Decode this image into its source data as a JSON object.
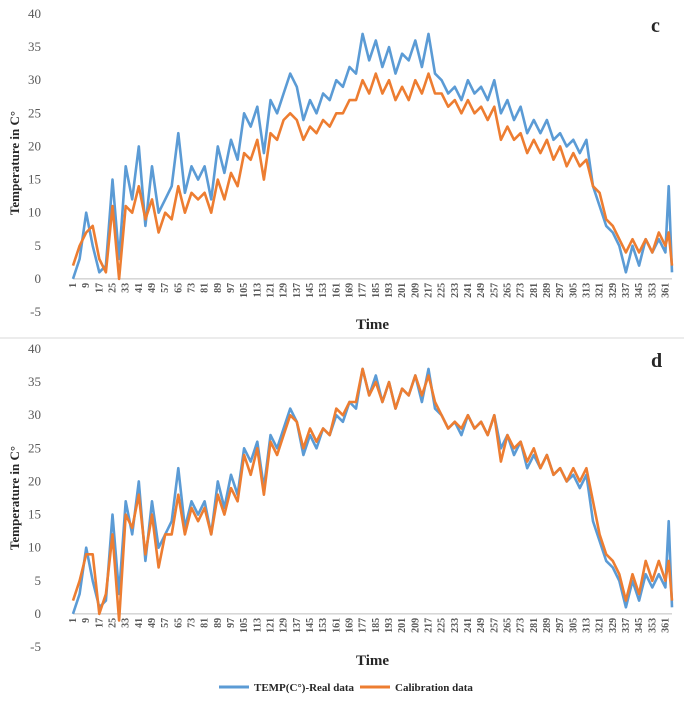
{
  "chart_data": [
    {
      "type": "line",
      "panel_label": "c",
      "xlabel": "Time",
      "ylabel": "Temperature in C°",
      "ylim": [
        -5,
        40
      ],
      "yticks": [
        -5,
        0,
        5,
        10,
        15,
        20,
        25,
        30,
        35,
        40
      ],
      "xlim": [
        1,
        365
      ],
      "xticks": [
        1,
        9,
        17,
        25,
        33,
        41,
        49,
        57,
        65,
        73,
        81,
        89,
        97,
        105,
        113,
        121,
        129,
        137,
        145,
        153,
        161,
        169,
        177,
        185,
        193,
        201,
        209,
        217,
        225,
        233,
        241,
        249,
        257,
        265,
        273,
        281,
        289,
        297,
        305,
        313,
        321,
        329,
        337,
        345,
        353,
        361
      ],
      "series": [
        {
          "name": "TEMP(C°)-Real data",
          "color": "#5b9bd5",
          "x": [
            1,
            5,
            9,
            13,
            17,
            21,
            25,
            29,
            33,
            37,
            41,
            45,
            49,
            53,
            57,
            61,
            65,
            69,
            73,
            77,
            81,
            85,
            89,
            93,
            97,
            101,
            105,
            109,
            113,
            117,
            121,
            125,
            129,
            133,
            137,
            141,
            145,
            149,
            153,
            157,
            161,
            165,
            169,
            173,
            177,
            181,
            185,
            189,
            193,
            197,
            201,
            205,
            209,
            213,
            217,
            221,
            225,
            229,
            233,
            237,
            241,
            245,
            249,
            253,
            257,
            261,
            265,
            269,
            273,
            277,
            281,
            285,
            289,
            293,
            297,
            301,
            305,
            309,
            313,
            317,
            321,
            325,
            329,
            333,
            337,
            341,
            345,
            349,
            353,
            357,
            361,
            363,
            365
          ],
          "values": [
            0,
            3,
            10,
            5,
            1,
            2,
            15,
            3,
            17,
            12,
            20,
            8,
            17,
            10,
            12,
            14,
            22,
            13,
            17,
            15,
            17,
            12,
            20,
            16,
            21,
            18,
            25,
            23,
            26,
            19,
            27,
            25,
            28,
            31,
            29,
            24,
            27,
            25,
            28,
            27,
            30,
            29,
            32,
            31,
            37,
            33,
            36,
            32,
            35,
            31,
            34,
            33,
            36,
            32,
            37,
            31,
            30,
            28,
            29,
            27,
            30,
            28,
            29,
            27,
            30,
            25,
            27,
            24,
            26,
            22,
            24,
            22,
            24,
            21,
            22,
            20,
            21,
            19,
            21,
            14,
            11,
            8,
            7,
            5,
            1,
            5,
            2,
            6,
            4,
            6,
            4,
            14,
            1
          ]
        },
        {
          "name": "Calibration data",
          "color": "#ed7d31",
          "x": [
            1,
            5,
            9,
            13,
            17,
            21,
            25,
            29,
            33,
            37,
            41,
            45,
            49,
            53,
            57,
            61,
            65,
            69,
            73,
            77,
            81,
            85,
            89,
            93,
            97,
            101,
            105,
            109,
            113,
            117,
            121,
            125,
            129,
            133,
            137,
            141,
            145,
            149,
            153,
            157,
            161,
            165,
            169,
            173,
            177,
            181,
            185,
            189,
            193,
            197,
            201,
            205,
            209,
            213,
            217,
            221,
            225,
            229,
            233,
            237,
            241,
            245,
            249,
            253,
            257,
            261,
            265,
            269,
            273,
            277,
            281,
            285,
            289,
            293,
            297,
            301,
            305,
            309,
            313,
            317,
            321,
            325,
            329,
            333,
            337,
            341,
            345,
            349,
            353,
            357,
            361,
            363,
            365
          ],
          "values": [
            2,
            5,
            7,
            8,
            3,
            1,
            11,
            0,
            11,
            10,
            14,
            9,
            12,
            7,
            10,
            9,
            14,
            10,
            13,
            12,
            13,
            10,
            15,
            12,
            16,
            14,
            19,
            18,
            21,
            15,
            22,
            21,
            24,
            25,
            24,
            21,
            23,
            22,
            24,
            23,
            25,
            25,
            27,
            27,
            30,
            28,
            31,
            28,
            30,
            27,
            29,
            27,
            30,
            28,
            31,
            28,
            28,
            26,
            27,
            25,
            27,
            25,
            26,
            24,
            26,
            21,
            23,
            21,
            22,
            19,
            21,
            19,
            21,
            18,
            20,
            17,
            19,
            17,
            18,
            14,
            13,
            9,
            8,
            6,
            4,
            6,
            4,
            6,
            4,
            7,
            5,
            7,
            2
          ]
        }
      ]
    },
    {
      "type": "line",
      "panel_label": "d",
      "xlabel": "Time",
      "ylabel": "Temperature in C°",
      "ylim": [
        -5,
        40
      ],
      "yticks": [
        -5,
        0,
        5,
        10,
        15,
        20,
        25,
        30,
        35,
        40
      ],
      "xlim": [
        1,
        365
      ],
      "xticks": [
        1,
        9,
        17,
        25,
        33,
        41,
        49,
        57,
        65,
        73,
        81,
        89,
        97,
        105,
        113,
        121,
        129,
        137,
        145,
        153,
        161,
        169,
        177,
        185,
        193,
        201,
        209,
        217,
        225,
        233,
        241,
        249,
        257,
        265,
        273,
        281,
        289,
        297,
        305,
        313,
        321,
        329,
        337,
        345,
        353,
        361
      ],
      "series": [
        {
          "name": "TEMP(C°)-Real data",
          "color": "#5b9bd5",
          "x": [
            1,
            5,
            9,
            13,
            17,
            21,
            25,
            29,
            33,
            37,
            41,
            45,
            49,
            53,
            57,
            61,
            65,
            69,
            73,
            77,
            81,
            85,
            89,
            93,
            97,
            101,
            105,
            109,
            113,
            117,
            121,
            125,
            129,
            133,
            137,
            141,
            145,
            149,
            153,
            157,
            161,
            165,
            169,
            173,
            177,
            181,
            185,
            189,
            193,
            197,
            201,
            205,
            209,
            213,
            217,
            221,
            225,
            229,
            233,
            237,
            241,
            245,
            249,
            253,
            257,
            261,
            265,
            269,
            273,
            277,
            281,
            285,
            289,
            293,
            297,
            301,
            305,
            309,
            313,
            317,
            321,
            325,
            329,
            333,
            337,
            341,
            345,
            349,
            353,
            357,
            361,
            363,
            365
          ],
          "values": [
            0,
            3,
            10,
            5,
            1,
            2,
            15,
            3,
            17,
            12,
            20,
            8,
            17,
            10,
            12,
            14,
            22,
            13,
            17,
            15,
            17,
            12,
            20,
            16,
            21,
            18,
            25,
            23,
            26,
            19,
            27,
            25,
            28,
            31,
            29,
            24,
            27,
            25,
            28,
            27,
            30,
            29,
            32,
            31,
            37,
            33,
            36,
            32,
            35,
            31,
            34,
            33,
            36,
            32,
            37,
            31,
            30,
            28,
            29,
            27,
            30,
            28,
            29,
            27,
            30,
            25,
            27,
            24,
            26,
            22,
            24,
            22,
            24,
            21,
            22,
            20,
            21,
            19,
            21,
            14,
            11,
            8,
            7,
            5,
            1,
            5,
            2,
            6,
            4,
            6,
            4,
            14,
            1
          ]
        },
        {
          "name": "Calibration data",
          "color": "#ed7d31",
          "x": [
            1,
            5,
            9,
            13,
            17,
            21,
            25,
            29,
            33,
            37,
            41,
            45,
            49,
            53,
            57,
            61,
            65,
            69,
            73,
            77,
            81,
            85,
            89,
            93,
            97,
            101,
            105,
            109,
            113,
            117,
            121,
            125,
            129,
            133,
            137,
            141,
            145,
            149,
            153,
            157,
            161,
            165,
            169,
            173,
            177,
            181,
            185,
            189,
            193,
            197,
            201,
            205,
            209,
            213,
            217,
            221,
            225,
            229,
            233,
            237,
            241,
            245,
            249,
            253,
            257,
            261,
            265,
            269,
            273,
            277,
            281,
            285,
            289,
            293,
            297,
            301,
            305,
            309,
            313,
            317,
            321,
            325,
            329,
            333,
            337,
            341,
            345,
            349,
            353,
            357,
            361,
            363,
            365
          ],
          "values": [
            2,
            5,
            9,
            9,
            0,
            3,
            12,
            -1,
            15,
            13,
            18,
            9,
            15,
            7,
            12,
            12,
            18,
            12,
            16,
            14,
            16,
            12,
            18,
            15,
            19,
            17,
            24,
            21,
            25,
            18,
            26,
            24,
            27,
            30,
            29,
            25,
            28,
            26,
            28,
            27,
            31,
            30,
            32,
            32,
            37,
            33,
            35,
            32,
            35,
            31,
            34,
            33,
            36,
            33,
            36,
            32,
            30,
            28,
            29,
            28,
            30,
            28,
            29,
            27,
            30,
            23,
            27,
            25,
            26,
            23,
            25,
            22,
            24,
            21,
            22,
            20,
            22,
            20,
            22,
            17,
            12,
            9,
            8,
            6,
            2,
            6,
            3,
            8,
            5,
            8,
            5,
            8,
            2
          ]
        }
      ]
    }
  ],
  "legend": {
    "items": [
      {
        "label": "TEMP(C°)-Real data",
        "color": "#5b9bd5"
      },
      {
        "label": "Calibration data",
        "color": "#ed7d31"
      }
    ]
  }
}
